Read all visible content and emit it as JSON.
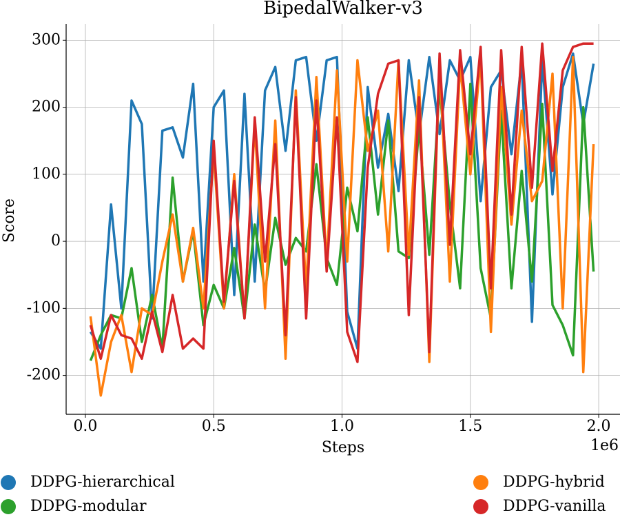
{
  "chart_data": {
    "type": "line",
    "title": "BipedalWalker-v3",
    "x_label": "Steps",
    "y_label": "Score",
    "x_offset_label": "1e6",
    "x": [
      20000,
      60000,
      100000,
      140000,
      180000,
      220000,
      260000,
      300000,
      340000,
      380000,
      420000,
      460000,
      500000,
      540000,
      580000,
      620000,
      660000,
      700000,
      740000,
      780000,
      820000,
      860000,
      900000,
      940000,
      980000,
      1020000,
      1060000,
      1100000,
      1140000,
      1180000,
      1220000,
      1260000,
      1300000,
      1340000,
      1380000,
      1420000,
      1460000,
      1500000,
      1540000,
      1580000,
      1620000,
      1660000,
      1700000,
      1740000,
      1780000,
      1820000,
      1860000,
      1900000,
      1940000,
      1980000
    ],
    "series": [
      {
        "name": "DDPG-hierarchical",
        "color": "#1f77b4",
        "values": [
          -135,
          -160,
          55,
          -100,
          210,
          175,
          -115,
          165,
          170,
          125,
          235,
          -60,
          200,
          225,
          -80,
          220,
          -60,
          225,
          260,
          135,
          270,
          275,
          150,
          270,
          275,
          -105,
          -160,
          230,
          110,
          190,
          75,
          270,
          160,
          275,
          160,
          270,
          240,
          275,
          60,
          230,
          255,
          130,
          270,
          -120,
          270,
          70,
          230,
          280,
          175,
          265
        ]
      },
      {
        "name": "DDPG-modular",
        "color": "#2ca02c",
        "values": [
          -178,
          -140,
          -110,
          -115,
          -40,
          -150,
          -80,
          -160,
          95,
          -60,
          15,
          -125,
          -65,
          -100,
          -10,
          -115,
          25,
          -75,
          35,
          -35,
          5,
          -15,
          115,
          -25,
          -65,
          80,
          15,
          185,
          40,
          180,
          -15,
          -25,
          170,
          -20,
          230,
          55,
          -70,
          235,
          -40,
          -115,
          195,
          -70,
          105,
          -60,
          205,
          -95,
          -125,
          -170,
          200,
          -45
        ]
      },
      {
        "name": "DDPG-hybrid",
        "color": "#ff7f0e",
        "values": [
          -112,
          -230,
          -150,
          -110,
          -195,
          -100,
          -110,
          -30,
          40,
          -60,
          20,
          -100,
          135,
          -100,
          100,
          -115,
          175,
          -100,
          180,
          -175,
          225,
          -75,
          245,
          -35,
          255,
          -30,
          270,
          135,
          195,
          -15,
          270,
          -20,
          240,
          -180,
          270,
          -60,
          265,
          100,
          275,
          -135,
          230,
          25,
          195,
          60,
          90,
          250,
          -100,
          275,
          -195,
          145
        ]
      },
      {
        "name": "DDPG-vanilla",
        "color": "#d62728",
        "values": [
          -125,
          -175,
          -110,
          -140,
          -145,
          -175,
          -105,
          -165,
          -80,
          -160,
          -145,
          -160,
          150,
          -90,
          90,
          -115,
          185,
          -30,
          145,
          -140,
          215,
          -115,
          210,
          -45,
          185,
          -135,
          -180,
          110,
          220,
          265,
          270,
          -110,
          215,
          -165,
          280,
          -5,
          285,
          130,
          290,
          -70,
          285,
          40,
          290,
          80,
          295,
          105,
          255,
          290,
          295,
          295
        ]
      }
    ],
    "xlim": [
      -75000,
      2083000
    ],
    "ylim": [
      -258,
      324
    ],
    "xticks": [
      {
        "value": 0,
        "label": "0.0"
      },
      {
        "value": 500000,
        "label": "0.5"
      },
      {
        "value": 1000000,
        "label": "1.0"
      },
      {
        "value": 1500000,
        "label": "1.5"
      },
      {
        "value": 2000000,
        "label": "2.0"
      }
    ],
    "yticks": [
      -200,
      -100,
      0,
      100,
      200,
      300
    ],
    "grid": true
  }
}
